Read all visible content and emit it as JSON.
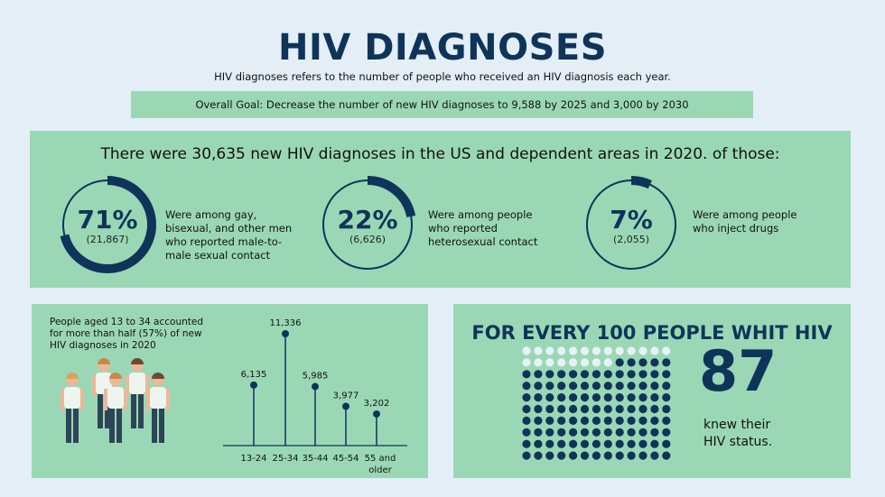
{
  "title": "HIV DIAGNOSES",
  "subtitle": "HIV diagnoses refers to the number of people who received an HIV diagnosis each year.",
  "goal": "Overall Goal: Decrease the number of new HIV diagnoses to 9,588 by 2025 and 3,000 by 2030",
  "headline": "There were 30,635 new HIV diagnoses in the US and dependent areas in 2020. of those:",
  "stats": [
    {
      "pct": "71%",
      "value": 71,
      "count": "(21,867)",
      "desc": "Were among gay, bisexual, and other men who reported male-to-male sexual contact"
    },
    {
      "pct": "22%",
      "value": 22,
      "count": "(6,626)",
      "desc": "Were among people who reported heterosexual contact"
    },
    {
      "pct": "7%",
      "value": 7,
      "count": "(2,055)",
      "desc": "Were among people who inject drugs"
    }
  ],
  "age_text": "People aged 13 to 34 accounted for more than half (57%) of new HIV diagnoses in 2020",
  "chart_data": {
    "type": "lollipop",
    "categories": [
      "13-24",
      "25-34",
      "35-44",
      "45-54",
      "55 and older"
    ],
    "values": [
      6135,
      11336,
      5985,
      3977,
      3202
    ],
    "labels": [
      "6,135",
      "11,336",
      "5,985",
      "3,977",
      "3,202"
    ],
    "ylim": [
      0,
      11336
    ]
  },
  "every100": {
    "heading": "FOR EVERY 100 PEOPLE WHIT HIV",
    "number": "87",
    "caption_line1": "knew their",
    "caption_line2": "HIV status.",
    "light_dots": 21,
    "total_dots": 130
  },
  "colors": {
    "navy": "#0f3459",
    "green": "#9ad8b5",
    "bg": "#e4eef7"
  }
}
